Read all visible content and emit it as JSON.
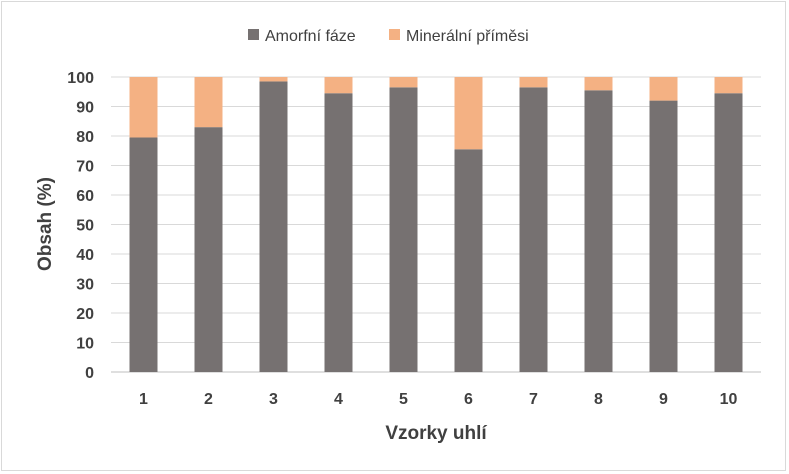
{
  "chart_data": {
    "type": "bar",
    "stacked": true,
    "title": "",
    "xlabel": "Vzorky uhlí",
    "ylabel": "Obsah (%)",
    "ylim": [
      0,
      100
    ],
    "yticks": [
      0,
      10,
      20,
      30,
      40,
      50,
      60,
      70,
      80,
      90,
      100
    ],
    "categories": [
      "1",
      "2",
      "3",
      "4",
      "5",
      "6",
      "7",
      "8",
      "9",
      "10"
    ],
    "grid": true,
    "legend_position": "top",
    "series": [
      {
        "name": "Amorfní fáze",
        "color": "#767171",
        "values": [
          79.5,
          83,
          98.5,
          94.5,
          96.5,
          75.5,
          96.5,
          95.5,
          92,
          94.5
        ]
      },
      {
        "name": "Minerální příměsi",
        "color": "#f4b183",
        "values": [
          20.5,
          17,
          1.5,
          5.5,
          3.5,
          24.5,
          3.5,
          4.5,
          8,
          5.5
        ]
      }
    ]
  }
}
